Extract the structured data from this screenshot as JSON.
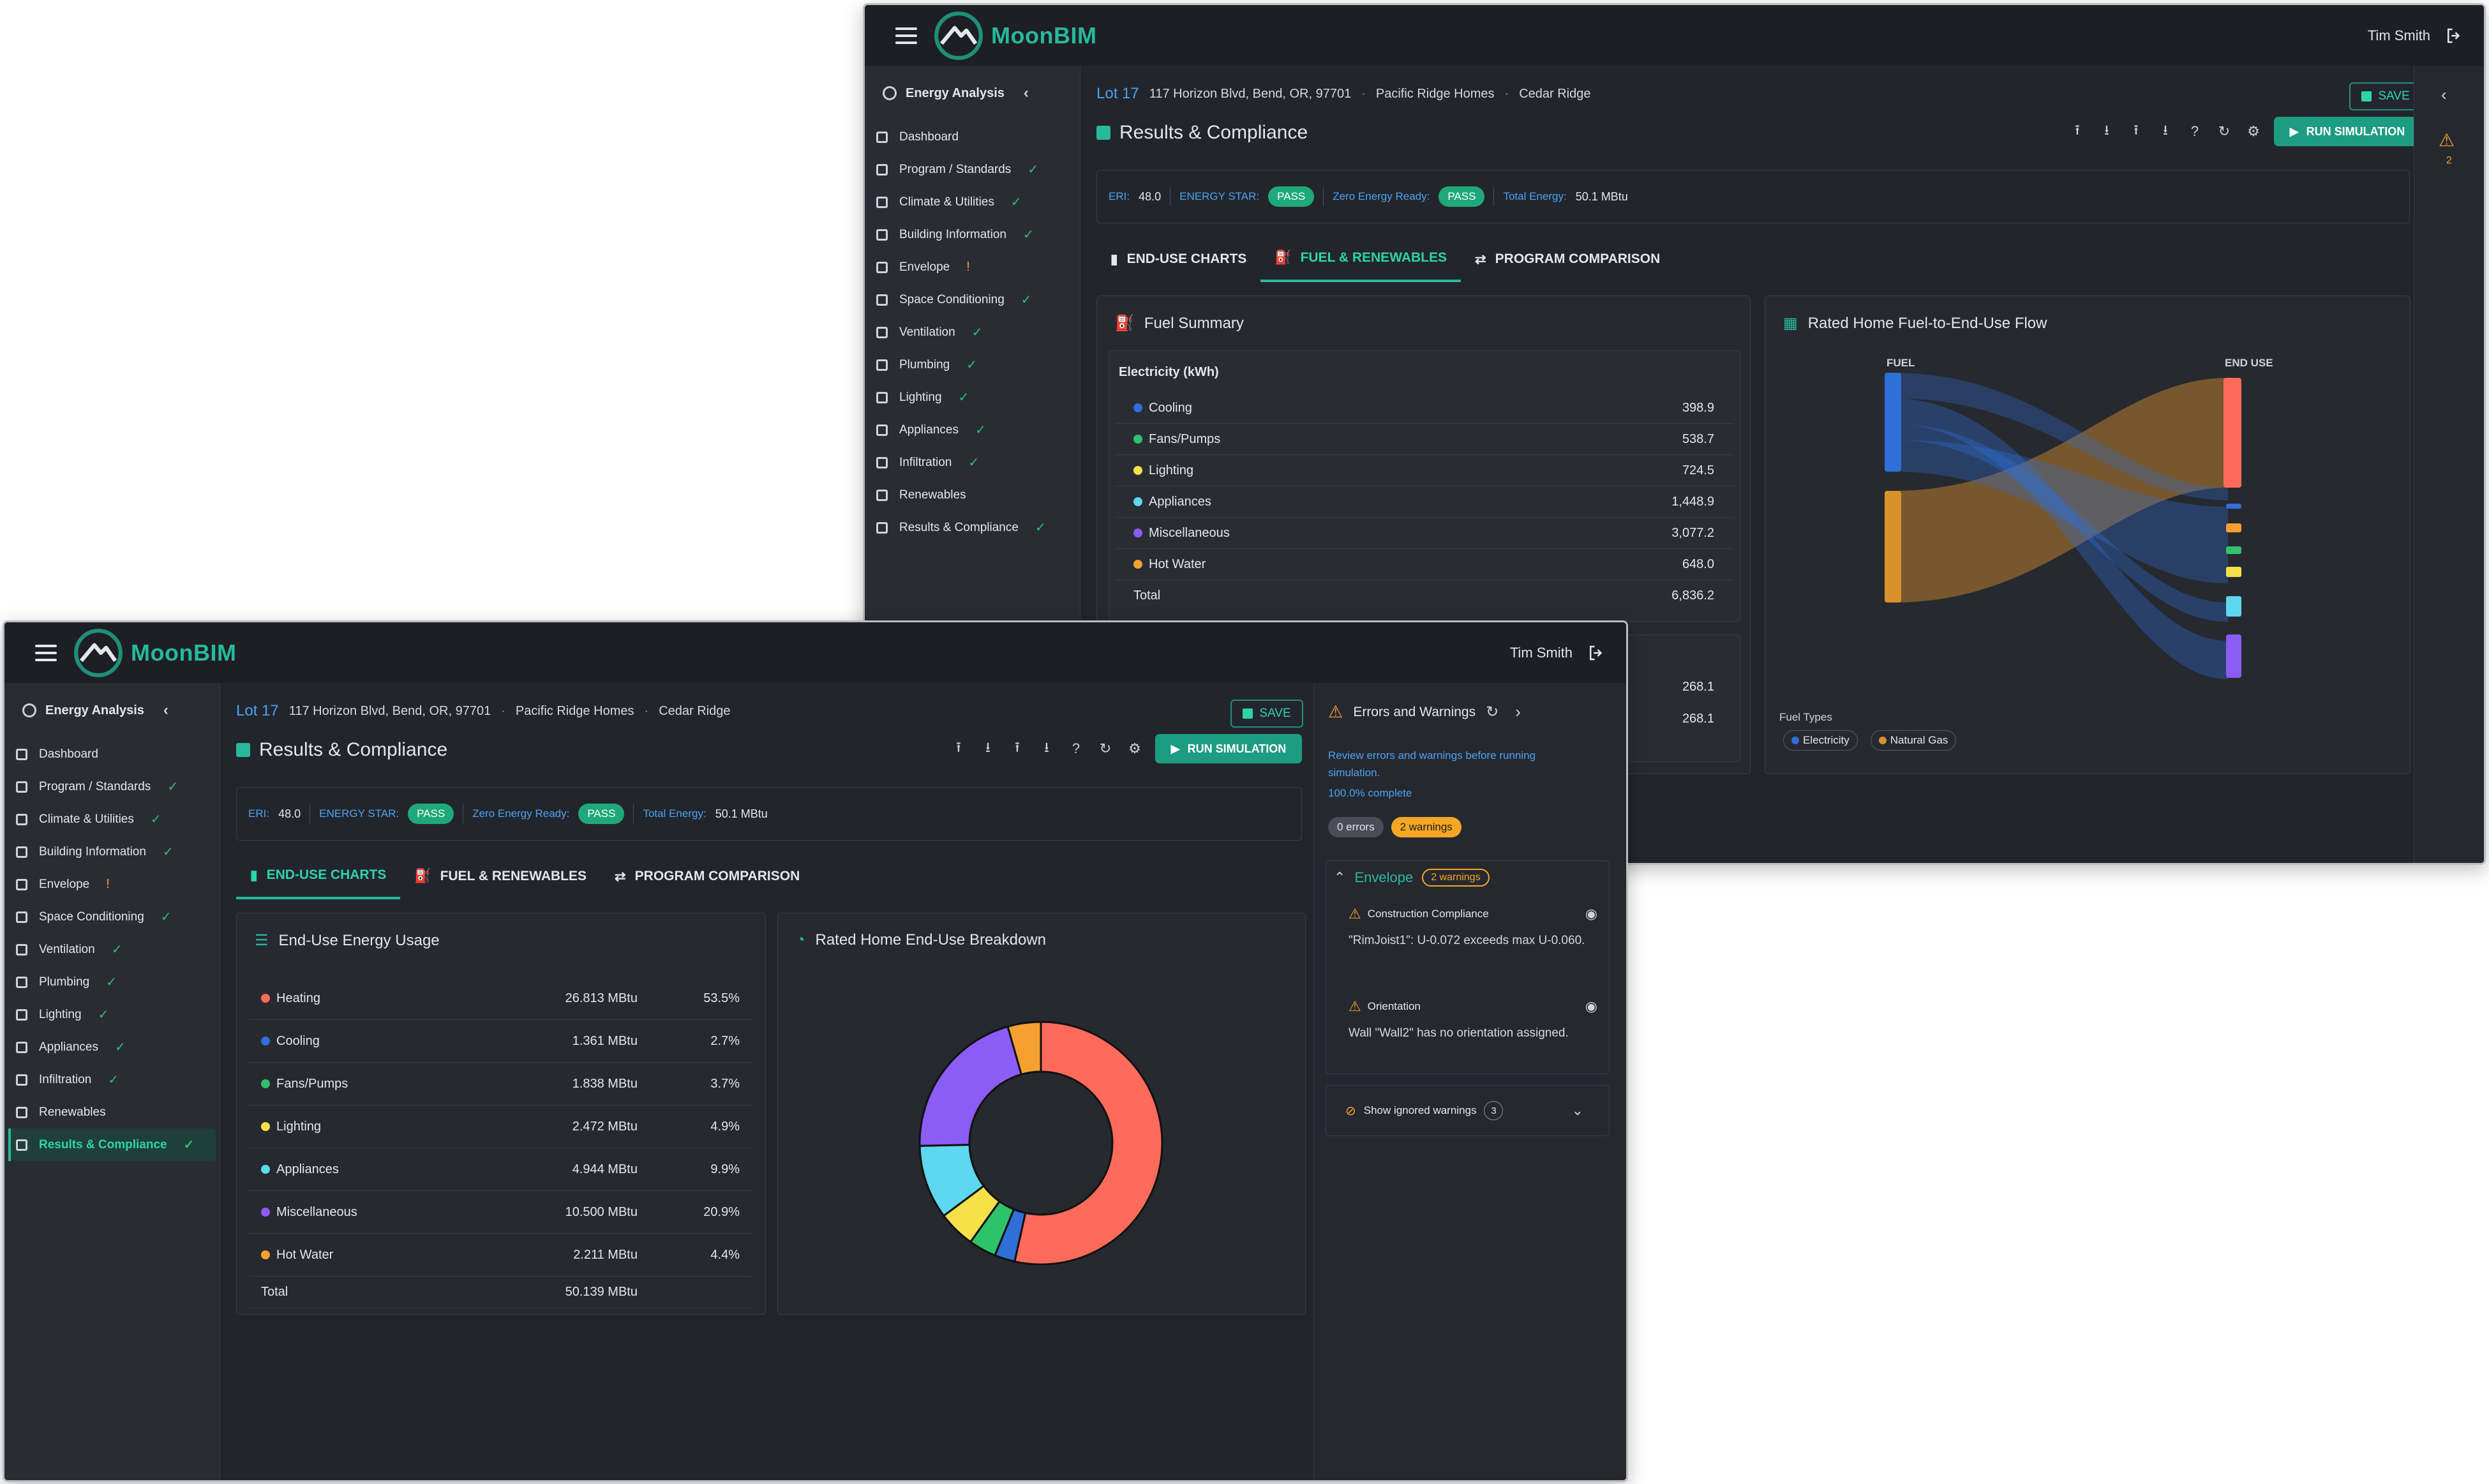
{
  "app": {
    "name": "MoonBIM",
    "user": "Tim Smith"
  },
  "sidebar": {
    "title": "Energy Analysis",
    "items": [
      {
        "label": "Dashboard",
        "icon": "dashboard-icon",
        "status": ""
      },
      {
        "label": "Program / Standards",
        "icon": "standards-icon",
        "status": "✓"
      },
      {
        "label": "Climate & Utilities",
        "icon": "sun-icon",
        "status": "✓"
      },
      {
        "label": "Building Information",
        "icon": "home-icon",
        "status": "✓"
      },
      {
        "label": "Envelope",
        "icon": "layers-icon",
        "status": "!"
      },
      {
        "label": "Space Conditioning",
        "icon": "snowflake-icon",
        "status": "✓"
      },
      {
        "label": "Ventilation",
        "icon": "fan-icon",
        "status": "✓"
      },
      {
        "label": "Plumbing",
        "icon": "wrench-icon",
        "status": "✓"
      },
      {
        "label": "Lighting",
        "icon": "bulb-icon",
        "status": "✓"
      },
      {
        "label": "Appliances",
        "icon": "appliance-icon",
        "status": "✓"
      },
      {
        "label": "Infiltration",
        "icon": "cloud-icon",
        "status": "✓"
      },
      {
        "label": "Renewables",
        "icon": "solar-icon",
        "status": ""
      },
      {
        "label": "Results & Compliance",
        "icon": "chart-icon",
        "status": "✓"
      }
    ]
  },
  "breadcrumb": {
    "lot": "Lot 17",
    "address": "117 Horizon Blvd, Bend, OR, 97701",
    "builder": "Pacific Ridge Homes",
    "community": "Cedar Ridge",
    "separator": "·"
  },
  "page": {
    "title": "Results & Compliance",
    "save_label": "SAVE",
    "run_label": "RUN SIMULATION"
  },
  "summary": {
    "eri_label": "ERI:",
    "eri_value": "48.0",
    "energy_star_label": "ENERGY STAR:",
    "energy_star_value": "PASS",
    "zero_energy_label": "Zero Energy Ready:",
    "zero_energy_value": "PASS",
    "total_label": "Total Energy:",
    "total_value": "50.1 MBtu"
  },
  "tabs": [
    {
      "label": "END-USE CHARTS"
    },
    {
      "label": "FUEL & RENEWABLES"
    },
    {
      "label": "PROGRAM COMPARISON"
    }
  ],
  "colors": {
    "heating": "#ff6b5b",
    "cooling": "#2f6fd6",
    "fans": "#2ec26b",
    "lighting": "#f5e04a",
    "appliances": "#5dd8ee",
    "misc": "#8b5cf6",
    "hotwater": "#f5a030",
    "electricity": "#2f6fd6",
    "gas": "#d9912b",
    "accent": "#28b89b"
  },
  "enduse": {
    "title": "End-Use Energy Usage",
    "rows": [
      {
        "label": "Heating",
        "value": "26.813 MBtu",
        "pct": "53.5%",
        "color": "#ff6b5b"
      },
      {
        "label": "Cooling",
        "value": "1.361 MBtu",
        "pct": "2.7%",
        "color": "#2f6fd6"
      },
      {
        "label": "Fans/Pumps",
        "value": "1.838 MBtu",
        "pct": "3.7%",
        "color": "#2ec26b"
      },
      {
        "label": "Lighting",
        "value": "2.472 MBtu",
        "pct": "4.9%",
        "color": "#f5e04a"
      },
      {
        "label": "Appliances",
        "value": "4.944 MBtu",
        "pct": "9.9%",
        "color": "#5dd8ee"
      },
      {
        "label": "Miscellaneous",
        "value": "10.500 MBtu",
        "pct": "20.9%",
        "color": "#8b5cf6"
      },
      {
        "label": "Hot Water",
        "value": "2.211 MBtu",
        "pct": "4.4%",
        "color": "#f5a030"
      }
    ],
    "total_label": "Total",
    "total_value": "50.139 MBtu"
  },
  "chart_data": {
    "type": "pie",
    "title": "Rated Home End-Use Breakdown",
    "categories": [
      "Heating",
      "Cooling",
      "Fans/Pumps",
      "Lighting",
      "Appliances",
      "Miscellaneous",
      "Hot Water"
    ],
    "values": [
      26.813,
      1.361,
      1.838,
      2.472,
      4.944,
      10.5,
      2.211
    ],
    "colors": [
      "#ff6b5b",
      "#2f6fd6",
      "#2ec26b",
      "#f5e04a",
      "#5dd8ee",
      "#8b5cf6",
      "#f5a030"
    ]
  },
  "fuel": {
    "title": "Fuel Summary",
    "electricity_title": "Electricity (kWh)",
    "rows": [
      {
        "label": "Cooling",
        "value": "398.9",
        "color": "#2f6fd6"
      },
      {
        "label": "Fans/Pumps",
        "value": "538.7",
        "color": "#2ec26b"
      },
      {
        "label": "Lighting",
        "value": "724.5",
        "color": "#f5e04a"
      },
      {
        "label": "Appliances",
        "value": "1,448.9",
        "color": "#5dd8ee"
      },
      {
        "label": "Miscellaneous",
        "value": "3,077.2",
        "color": "#8b5cf6"
      },
      {
        "label": "Hot Water",
        "value": "648.0",
        "color": "#f5a030"
      }
    ],
    "total_label": "Total",
    "total_value": "6,836.2",
    "gas_values": [
      "268.1",
      "268.1"
    ]
  },
  "flow": {
    "title": "Rated Home Fuel-to-End-Use Flow",
    "fuel_label": "FUEL",
    "enduse_label": "END USE",
    "legend_title": "Fuel Types",
    "legend": [
      "Electricity",
      "Natural Gas"
    ]
  },
  "errors": {
    "title": "Errors and Warnings",
    "description": "Review errors and warnings before running simulation.",
    "complete": "100.0% complete",
    "error_count": "0 errors",
    "warning_count": "2 warnings",
    "group_label": "Envelope",
    "group_count": "2 warnings",
    "warnings": [
      {
        "title": "Construction Compliance",
        "message": "\"RimJoist1\": U-0.072 exceeds max U-0.060."
      },
      {
        "title": "Orientation",
        "message": "Wall \"Wall2\" has no orientation assigned."
      }
    ],
    "ignored_label": "Show ignored warnings",
    "ignored_count": "3",
    "side_count": "2"
  }
}
